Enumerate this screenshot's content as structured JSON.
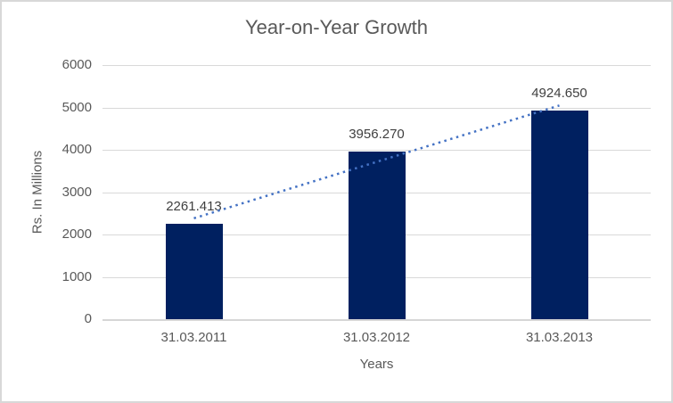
{
  "chart": {
    "colors": {
      "bar": "#002060",
      "trendline": "#4472C4",
      "text": "#595959",
      "label_text": "#404040",
      "gridline": "#D9D9D9",
      "axis_line": "#D6D6D6",
      "border": "#D8D8D8"
    }
  },
  "chart_data": {
    "type": "bar",
    "title": "Year-on-Year Growth",
    "categories": [
      "31.03.2011",
      "31.03.2012",
      "31.03.2013"
    ],
    "values": [
      2261.413,
      3956.27,
      4924.65
    ],
    "data_labels": [
      "2261.413",
      "3956.270",
      "4924.650"
    ],
    "xlabel": "Years",
    "ylabel": "Rs. In Millions",
    "ylim": [
      0,
      6000
    ],
    "yticks": [
      0,
      1000,
      2000,
      3000,
      4000,
      5000,
      6000
    ],
    "grid": true,
    "legend": "none",
    "trendline": "linear-dotted"
  }
}
